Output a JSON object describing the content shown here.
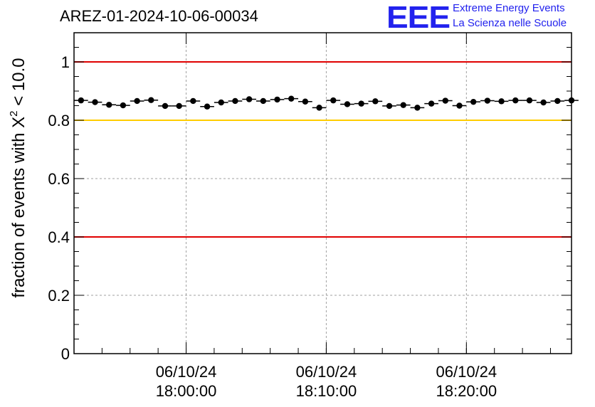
{
  "header": {
    "run_id": "AREZ-01-2024-10-06-00034",
    "logo_mark": "EEE",
    "logo_line1": "Extreme Energy Events",
    "logo_line2": "La Scienza nelle Scuole"
  },
  "colors": {
    "threshold_red": "#e00000",
    "threshold_yellow": "#ffcc00",
    "points": "#000000",
    "logo": "#2222ee"
  },
  "chart_data": {
    "type": "scatter",
    "title": "AREZ-01-2024-10-06-00034",
    "ylabel": "fraction of events with X² < 10.0",
    "ylim": [
      0,
      1.1
    ],
    "yticks": [
      0,
      0.2,
      0.4,
      0.6,
      0.8,
      1
    ],
    "ytick_labels": [
      "0",
      "0.2",
      "0.4",
      "0.6",
      "0.8",
      "1"
    ],
    "x_axis_kind": "time",
    "xlim": [
      "2024-10-06T17:52:00",
      "2024-10-06T18:27:30"
    ],
    "xticks": [
      "2024-10-06T18:00:00",
      "2024-10-06T18:10:00",
      "2024-10-06T18:20:00"
    ],
    "xtick_labels": [
      [
        "06/10/24",
        "18:00:00"
      ],
      [
        "06/10/24",
        "18:10:00"
      ],
      [
        "06/10/24",
        "18:20:00"
      ]
    ],
    "x_minor_tick_minutes": 2,
    "grid": true,
    "bin_minutes": 1,
    "x": [
      "17:52:30",
      "17:53:30",
      "17:54:30",
      "17:55:30",
      "17:56:30",
      "17:57:30",
      "17:58:30",
      "17:59:30",
      "18:00:30",
      "18:01:30",
      "18:02:30",
      "18:03:30",
      "18:04:30",
      "18:05:30",
      "18:06:30",
      "18:07:30",
      "18:08:30",
      "18:09:30",
      "18:10:30",
      "18:11:30",
      "18:12:30",
      "18:13:30",
      "18:14:30",
      "18:15:30",
      "18:16:30",
      "18:17:30",
      "18:18:30",
      "18:19:30",
      "18:20:30",
      "18:21:30",
      "18:22:30",
      "18:23:30",
      "18:24:30",
      "18:25:30",
      "18:26:30",
      "18:27:30"
    ],
    "values": [
      0.868,
      0.862,
      0.853,
      0.851,
      0.866,
      0.869,
      0.849,
      0.849,
      0.866,
      0.847,
      0.861,
      0.866,
      0.872,
      0.866,
      0.871,
      0.874,
      0.864,
      0.843,
      0.868,
      0.855,
      0.857,
      0.865,
      0.849,
      0.852,
      0.843,
      0.857,
      0.867,
      0.85,
      0.863,
      0.867,
      0.865,
      0.868,
      0.868,
      0.861,
      0.866,
      0.868
    ],
    "reference_lines": [
      {
        "y": 1.0,
        "color": "#e00000"
      },
      {
        "y": 0.8,
        "color": "#ffcc00"
      },
      {
        "y": 0.4,
        "color": "#e00000"
      }
    ]
  }
}
